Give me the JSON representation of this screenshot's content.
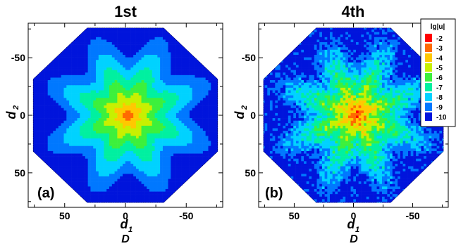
{
  "chart_data": [
    {
      "type": "heatmap",
      "title": "1st",
      "panel_label": "(a)",
      "xlabel": "d",
      "xlabel_sub": "1",
      "ylabel": "d",
      "ylabel_sub": "2",
      "footer_label": "D",
      "x_range": [
        80,
        -80
      ],
      "y_range": [
        -80,
        80
      ],
      "x_ticks": [
        50,
        0,
        -50
      ],
      "y_ticks": [
        -50,
        0,
        50
      ],
      "center_value": -2,
      "edge_value": -10,
      "noise": false,
      "grid": false
    },
    {
      "type": "heatmap",
      "title": "4th",
      "panel_label": "(b)",
      "xlabel": "d",
      "xlabel_sub": "1",
      "ylabel": "d",
      "ylabel_sub": "2",
      "footer_label": "D",
      "x_range": [
        80,
        -80
      ],
      "y_range": [
        -80,
        80
      ],
      "x_ticks": [
        50,
        0,
        -50
      ],
      "y_ticks": [
        -50,
        0,
        50
      ],
      "center_value": -2,
      "edge_value": -10,
      "noise": true,
      "grid": false
    }
  ],
  "legend": {
    "title": "lg|u|",
    "placement": "top-right",
    "levels": [
      -2,
      -3,
      -4,
      -5,
      -6,
      -7,
      -8,
      -9,
      -10
    ],
    "colors": [
      "#ff0000",
      "#ff6a00",
      "#ffc800",
      "#c8f000",
      "#3cf03c",
      "#00f0a0",
      "#00d2ff",
      "#0078ff",
      "#0014dc"
    ]
  }
}
